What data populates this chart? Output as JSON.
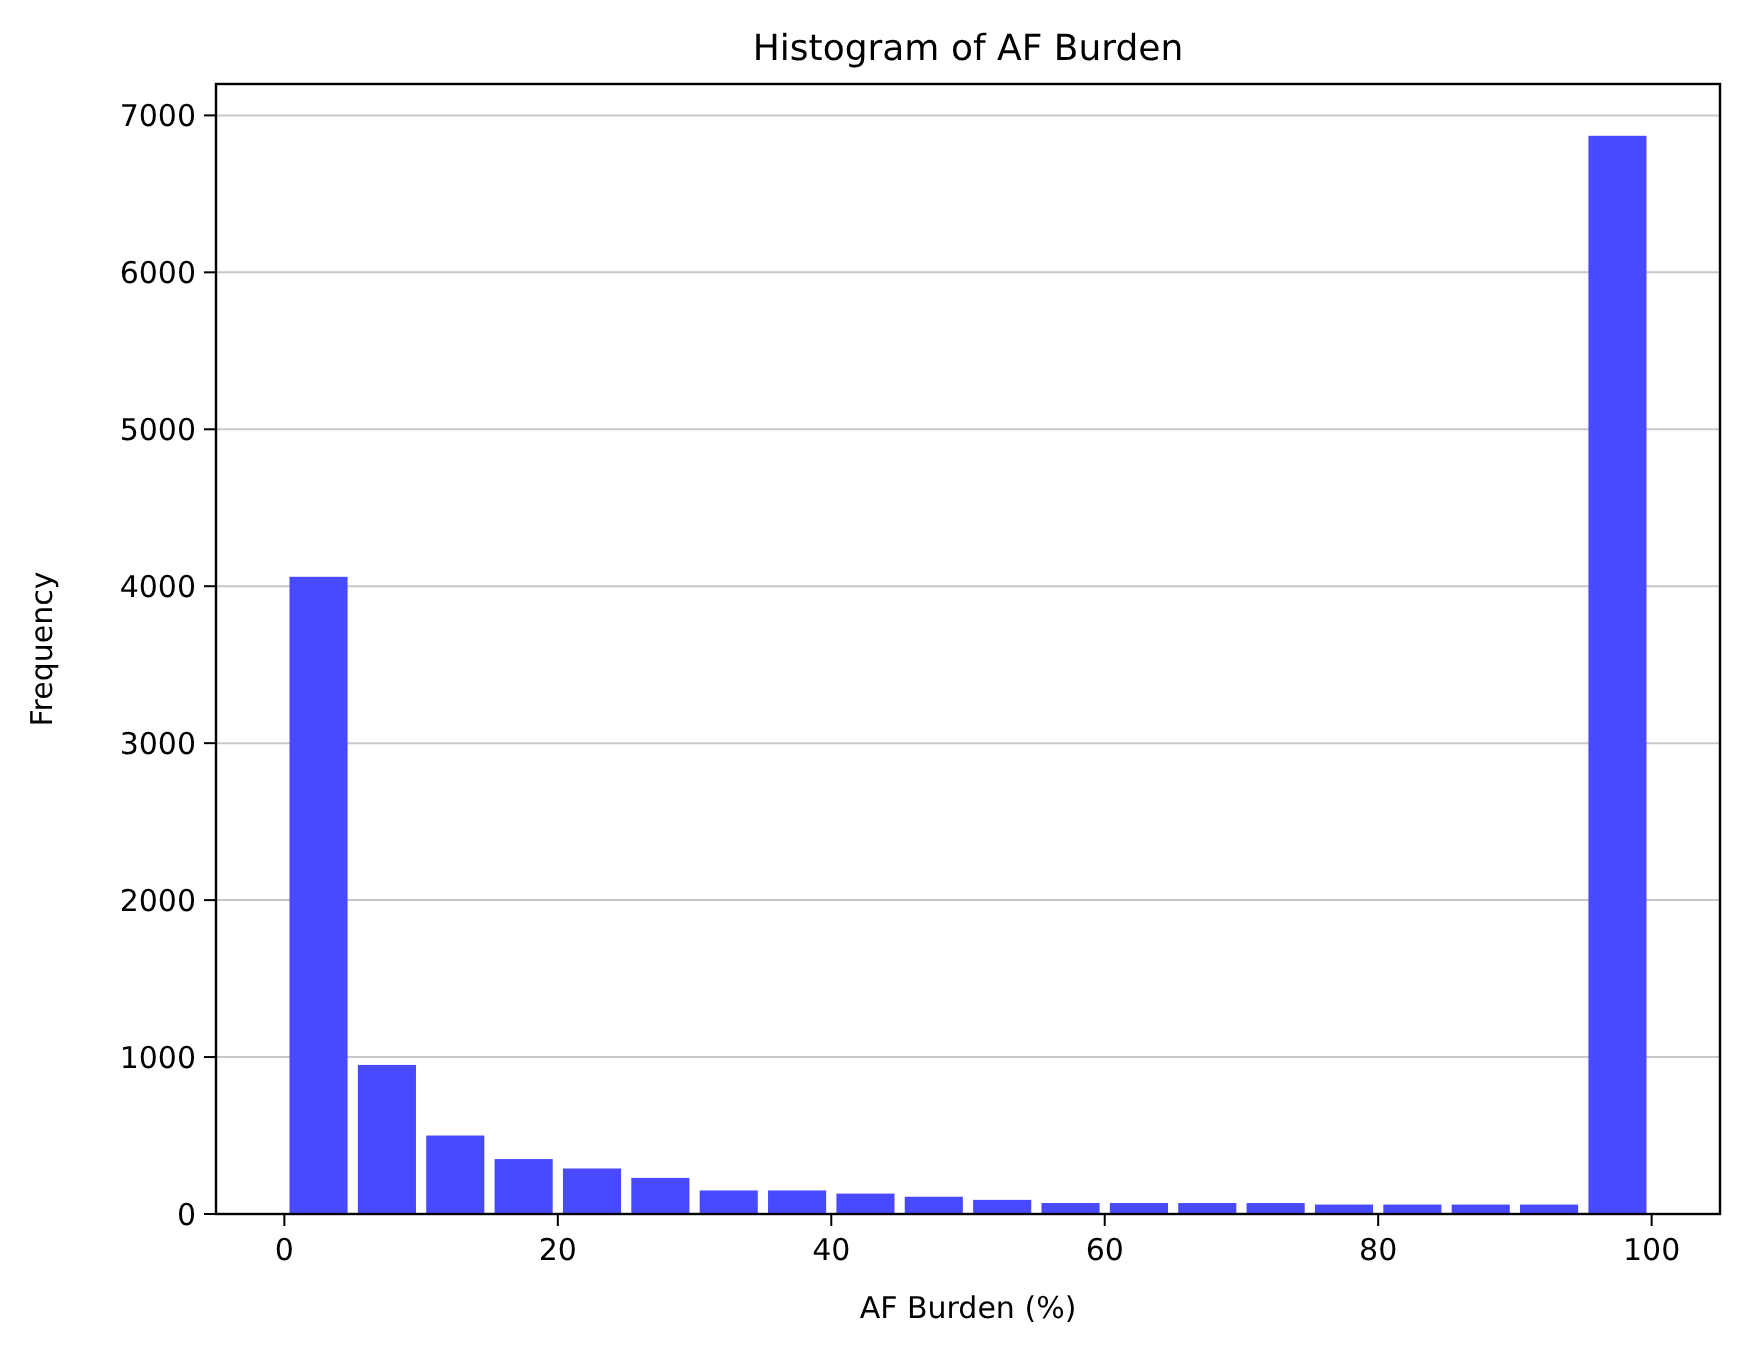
{
  "chart_data": {
    "type": "histogram",
    "title": "Histogram of AF Burden",
    "xlabel": "AF Burden (%)",
    "ylabel": "Frequency",
    "bins": [
      0,
      5,
      10,
      15,
      20,
      25,
      30,
      35,
      40,
      45,
      50,
      55,
      60,
      65,
      70,
      75,
      80,
      85,
      90,
      95,
      100
    ],
    "values": [
      4060,
      950,
      500,
      350,
      290,
      230,
      150,
      150,
      130,
      110,
      90,
      70,
      70,
      70,
      70,
      60,
      60,
      60,
      60,
      6870
    ],
    "color": "#4949ff",
    "xlim": [
      -5,
      105
    ],
    "xticks": [
      0,
      20,
      40,
      60,
      80,
      100
    ],
    "ylim": [
      0,
      7200
    ],
    "yticks": [
      0,
      1000,
      2000,
      3000,
      4000,
      5000,
      6000,
      7000
    ],
    "grid": "y"
  }
}
